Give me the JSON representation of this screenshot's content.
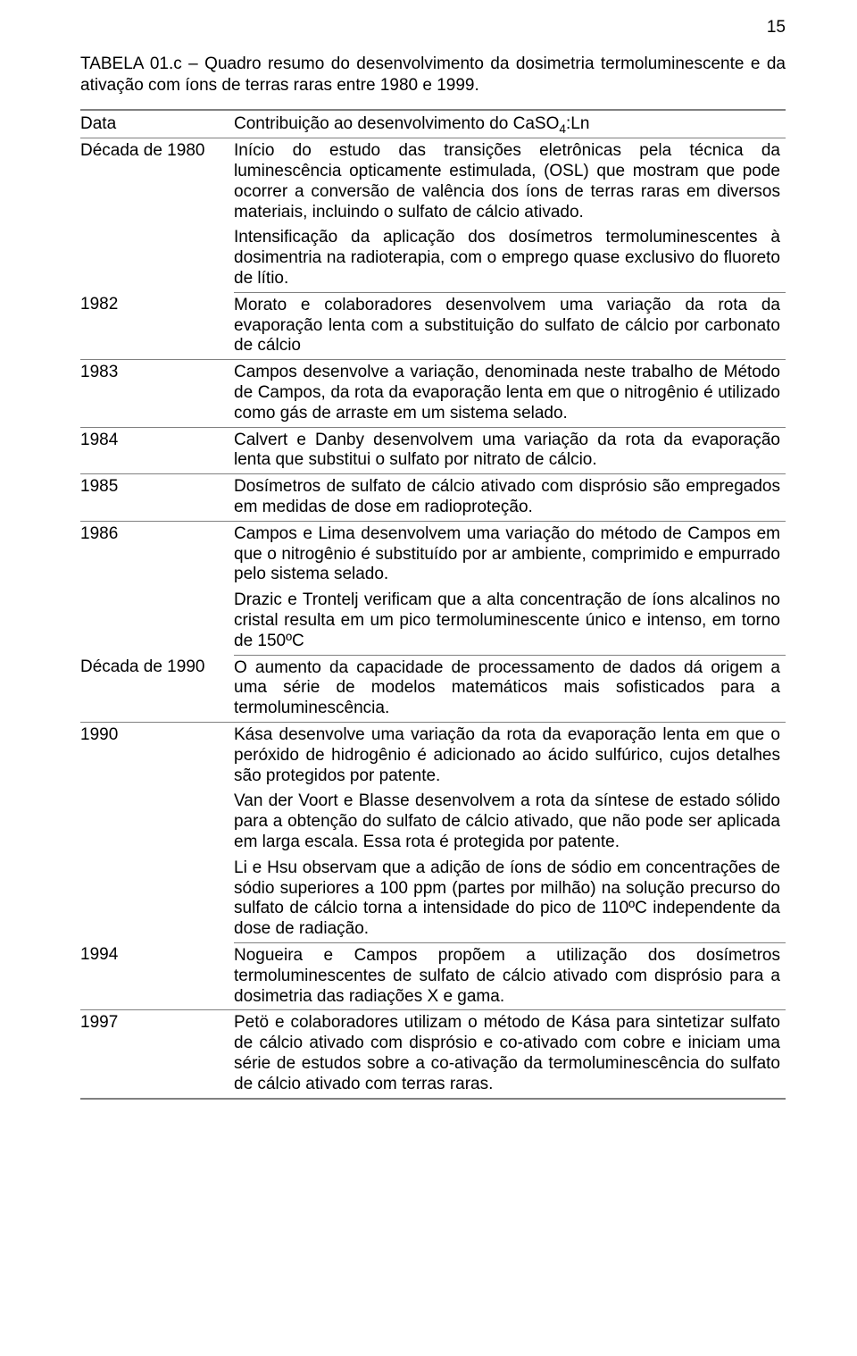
{
  "page_number": "15",
  "caption_prefix": "TABELA 01.c",
  "caption_sep": " – ",
  "caption_text": "Quadro resumo do desenvolvimento da dosimetria termoluminescente e da ativação com íons de terras raras entre 1980 e 1999.",
  "header": {
    "left": "Data",
    "right_html": "Contribuição ao desenvolvimento do CaSO<sub>4</sub>:Ln"
  },
  "colors": {
    "text": "#000000",
    "rule": "#808080",
    "background": "#ffffff"
  },
  "fonts": {
    "family": "Arial",
    "body_size_pt": 14,
    "line_height": 1.2
  },
  "rows": [
    {
      "left": "Década de 1980",
      "paras": [
        "Início do estudo das transições eletrônicas pela técnica da luminescência opticamente estimulada, (OSL) que mostram que pode ocorrer a conversão de valência dos íons de terras raras em diversos materiais, incluindo o sulfato de cálcio ativado.",
        "Intensificação da aplicação dos dosímetros termoluminescentes à dosimentria na radioterapia, com o emprego quase exclusivo do fluoreto de lítio."
      ]
    },
    {
      "left": "1982",
      "paras": [
        "Morato e colaboradores desenvolvem uma variação da rota da evaporação lenta com a substituição do sulfato de cálcio por carbonato de cálcio"
      ]
    },
    {
      "left": "1983",
      "paras": [
        "Campos desenvolve a variação, denominada neste trabalho de Método de Campos, da rota da evaporação lenta em que o nitrogênio é utilizado como gás de arraste em um sistema selado."
      ]
    },
    {
      "left": "1984",
      "paras": [
        "Calvert e Danby desenvolvem uma variação da rota da evaporação lenta que substitui o sulfato por nitrato de cálcio."
      ]
    },
    {
      "left": "1985",
      "paras": [
        "Dosímetros de sulfato de cálcio ativado com disprósio são empregados em medidas de dose em radioproteção."
      ]
    },
    {
      "left": "1986",
      "paras": [
        "Campos e Lima desenvolvem uma variação do método de Campos em que o nitrogênio é substituído por ar ambiente, comprimido e empurrado pelo sistema selado.",
        "Drazic e Trontelj verificam que a alta concentração de íons alcalinos no cristal resulta em um pico termoluminescente único e intenso, em torno de 150ºC"
      ]
    },
    {
      "left": "Década de 1990",
      "paras": [
        "O aumento da capacidade de processamento de dados dá origem a uma série de modelos matemáticos mais sofisticados para a termoluminescência."
      ]
    },
    {
      "left": "1990",
      "paras": [
        "Kása desenvolve uma variação da rota da evaporação lenta em que o peróxido de hidrogênio é adicionado ao ácido sulfúrico, cujos detalhes são protegidos por patente.",
        "Van der Voort e Blasse desenvolvem a rota da síntese de estado sólido para a obtenção do sulfato de cálcio ativado, que não pode ser aplicada em larga escala.  Essa rota é protegida por patente.",
        "Li e Hsu observam que a adição de íons de sódio em concentrações de sódio superiores a 100 ppm (partes por milhão) na solução precurso do sulfato de cálcio torna a intensidade do pico de 110ºC independente da dose de radiação."
      ]
    },
    {
      "left": "1994",
      "paras": [
        "Nogueira e Campos propõem a utilização dos dosímetros termoluminescentes de sulfato de cálcio ativado com disprósio para a dosimetria das radiações X e gama."
      ]
    },
    {
      "left": "1997",
      "paras": [
        "Petö e colaboradores utilizam o método de Kása para sintetizar sulfato de cálcio ativado com disprósio e co-ativado com cobre e iniciam uma série de estudos sobre a co-ativação da termoluminescência do sulfato de cálcio ativado com terras raras."
      ]
    }
  ]
}
